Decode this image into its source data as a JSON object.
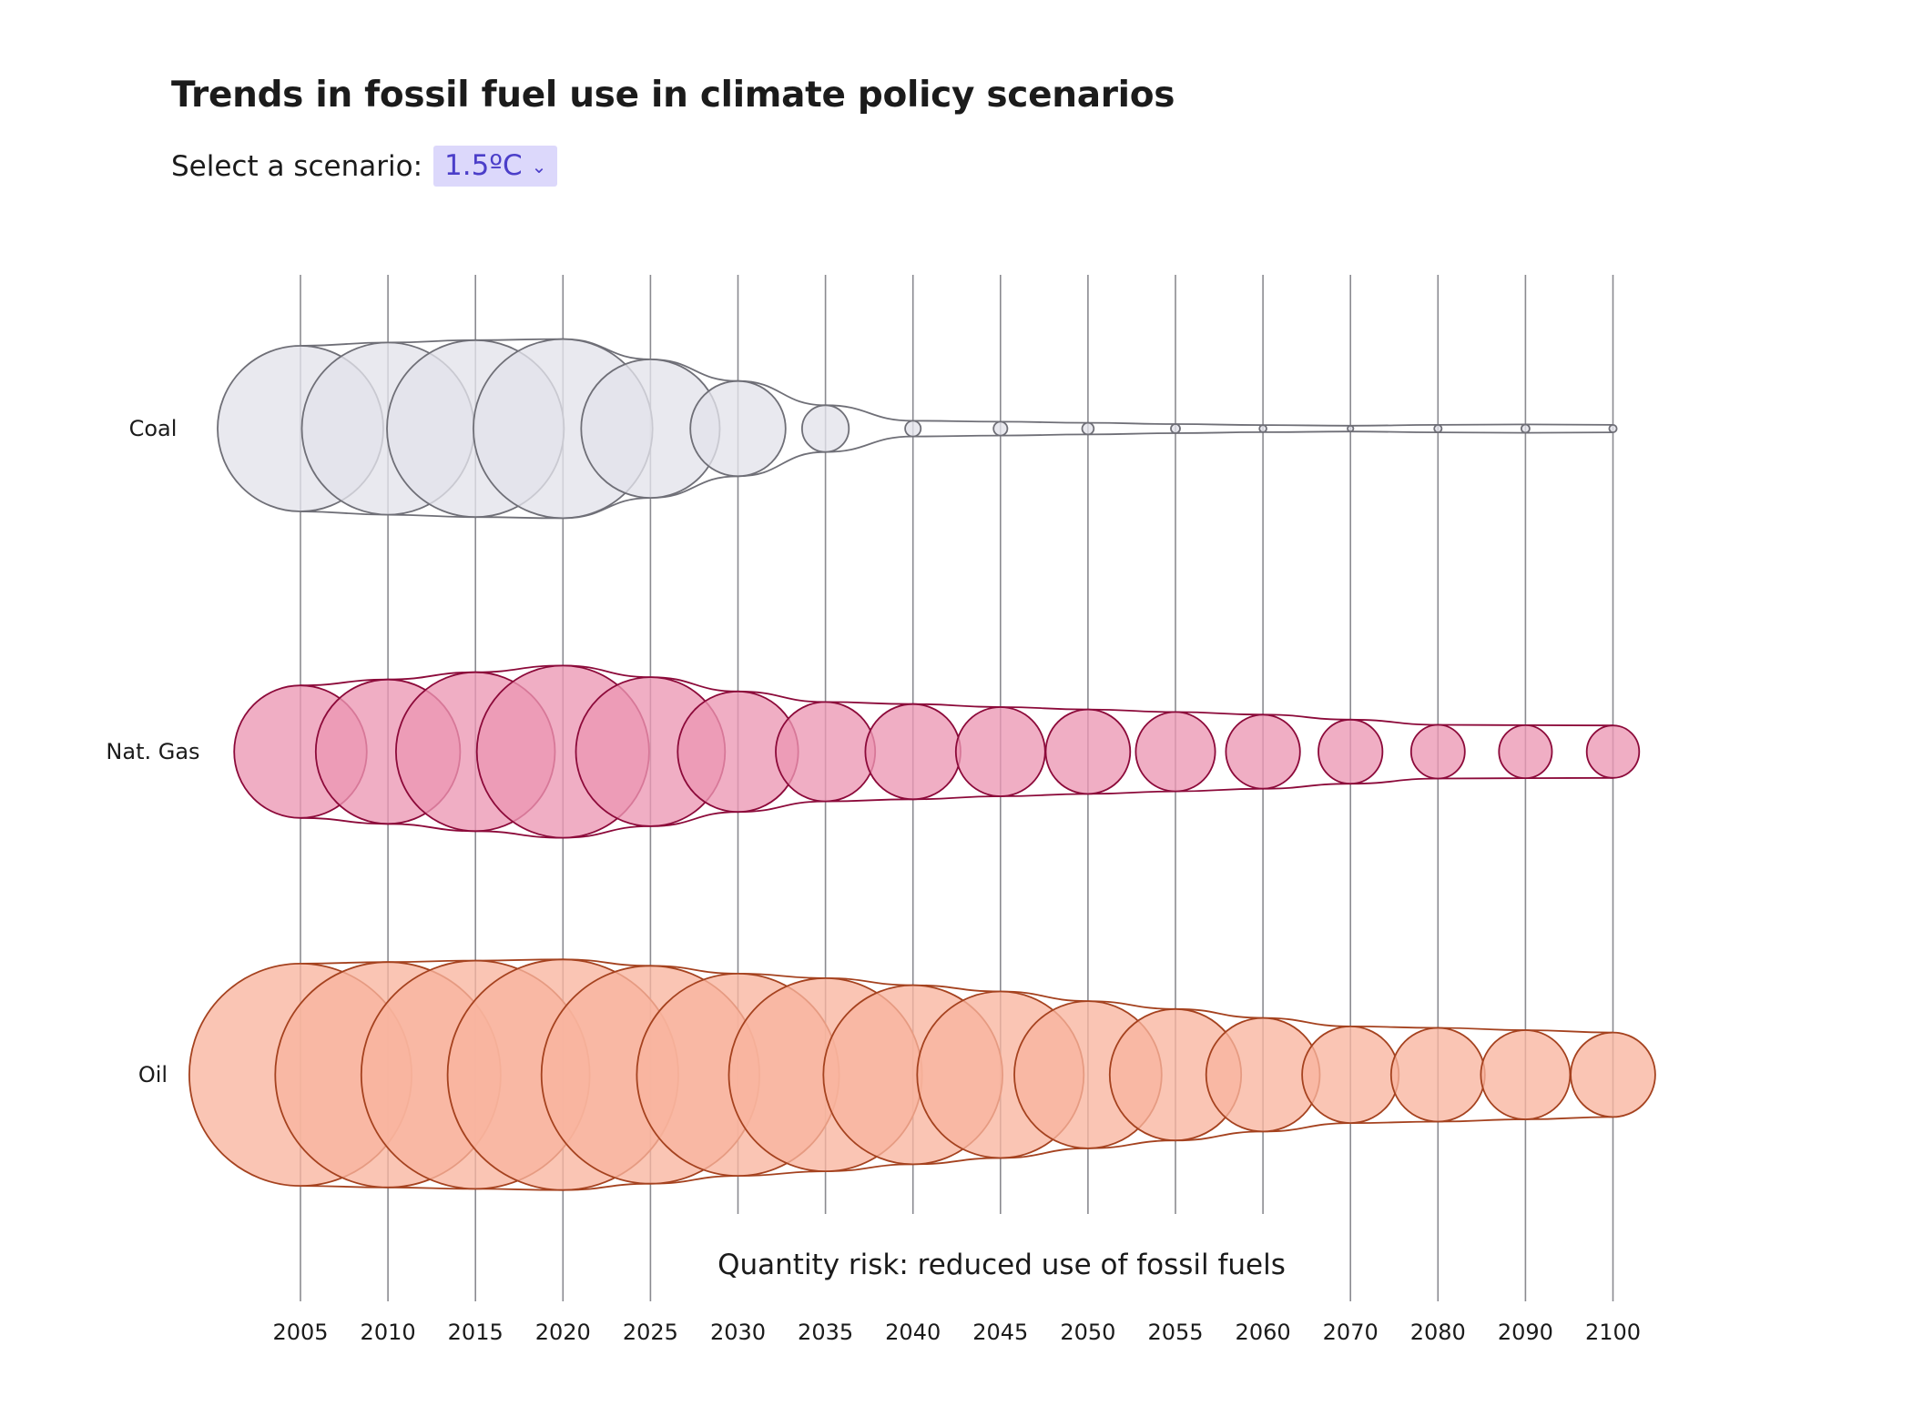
{
  "title": "Trends in fossil fuel use in climate policy scenarios",
  "scenario": {
    "label": "Select a scenario:",
    "selected": "1.5ºC",
    "chevron_icon": "chevron-down-icon"
  },
  "chart_data": {
    "type": "bubble",
    "title": "Trends in fossil fuel use in climate policy scenarios",
    "annotation": "Quantity risk: reduced use of fossil fuels",
    "x": [
      "2005",
      "2010",
      "2015",
      "2020",
      "2025",
      "2030",
      "2035",
      "2040",
      "2045",
      "2050",
      "2055",
      "2060",
      "2070",
      "2080",
      "2090",
      "2100"
    ],
    "series": [
      {
        "name": "Coal",
        "color": "#e3e3ea",
        "stroke": "#6f6f77",
        "values": [
          100,
          108,
          114,
          117,
          70,
          33,
          8,
          0.9,
          0.7,
          0.5,
          0.3,
          0.18,
          0.1,
          0.2,
          0.25,
          0.2
        ]
      },
      {
        "name": "Nat. Gas",
        "color": "#ec97b3",
        "stroke": "#8c0a3a",
        "values": [
          64,
          76,
          92,
          108,
          81,
          53,
          36,
          33,
          29,
          26,
          23,
          20,
          15,
          10.5,
          10.2,
          10
        ]
      },
      {
        "name": "Oil",
        "color": "#f9b59f",
        "stroke": "#a5421f",
        "values": [
          180,
          185,
          190,
          194,
          173,
          149,
          136,
          117,
          101,
          79,
          63,
          47,
          34,
          32,
          29,
          26
        ]
      }
    ]
  }
}
